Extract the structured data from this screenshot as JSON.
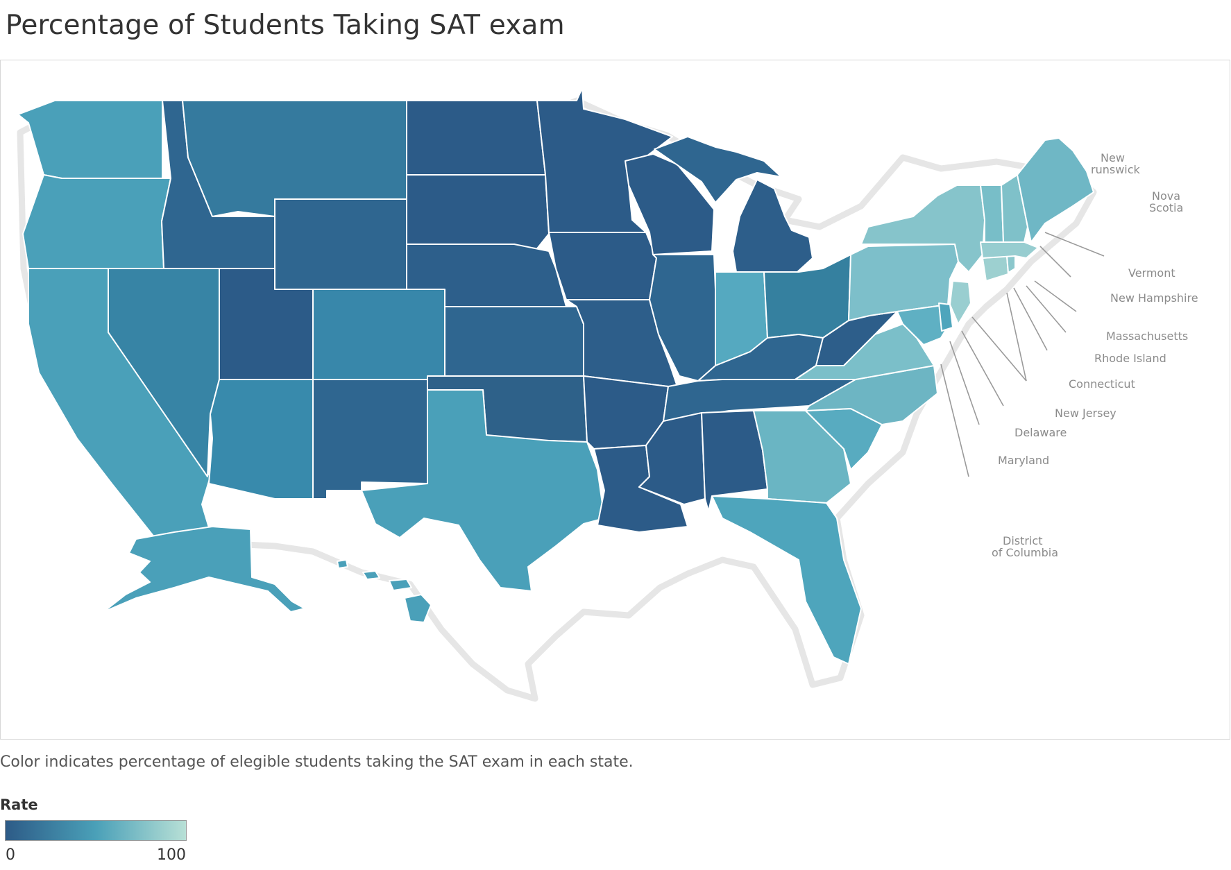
{
  "title": "Percentage of Students Taking SAT exam",
  "caption": "Color indicates percentage of elegible students taking the SAT exam in each state.",
  "legend": {
    "title": "Rate",
    "min_label": "0",
    "max_label": "100",
    "color_low": "#2d5b87",
    "color_mid": "#4aa0b8",
    "color_high": "#b8e0d6"
  },
  "callout_labels": {
    "vermont": "Vermont",
    "new_hampshire": "New Hampshire",
    "massachusetts": "Massachusetts",
    "rhode_island": "Rhode Island",
    "connecticut": "Connecticut",
    "new_jersey": "New Jersey",
    "delaware": "Delaware",
    "maryland": "Maryland",
    "dc_line1": "District",
    "dc_line2": "of Columbia",
    "nb_line1": "New",
    "nb_line2": "runswick",
    "ns_line1": "Nova",
    "ns_line2": "Scotia"
  }
}
